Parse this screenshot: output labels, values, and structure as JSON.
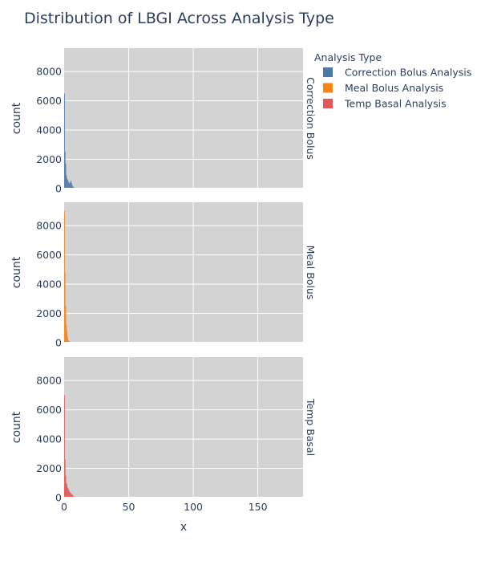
{
  "chart_data": {
    "type": "bar",
    "title": "Distribution of LBGI Across Analysis Type",
    "xlabel": "x",
    "ylabel": "count",
    "xlim": [
      0,
      185
    ],
    "ylim": [
      0,
      9600
    ],
    "x_ticks": [
      0,
      50,
      100,
      150
    ],
    "y_ticks": [
      0,
      2000,
      4000,
      6000,
      8000
    ],
    "grid": true,
    "plot_background": "#d3d3d3",
    "legend": {
      "title": "Analysis Type",
      "placement": "top-right"
    },
    "series": [
      {
        "name": "Correction Bolus Analysis",
        "facet_label": "Correction Bolus",
        "color": "#4c78a8",
        "bin_width": 0.5,
        "x": [
          0,
          0.5,
          1,
          1.5,
          2,
          2.5,
          3,
          3.5,
          4,
          4.5,
          5,
          5.5,
          6,
          6.5,
          7,
          7.5,
          8,
          8.5,
          9,
          9.5,
          10,
          10.5,
          11,
          11.5,
          12
        ],
        "values": [
          6500,
          2500,
          1700,
          900,
          700,
          600,
          500,
          400,
          350,
          450,
          550,
          400,
          250,
          150,
          100,
          80,
          60,
          40,
          30,
          20,
          15,
          10,
          8,
          5,
          3
        ]
      },
      {
        "name": "Meal Bolus Analysis",
        "facet_label": "Meal Bolus",
        "color": "#f58518",
        "bin_width": 0.5,
        "x": [
          0,
          0.5,
          1,
          1.5,
          2,
          2.5,
          3,
          3.5,
          4,
          4.5,
          5,
          5.5,
          6,
          6.5,
          7,
          7.5,
          8
        ],
        "values": [
          9000,
          4800,
          2500,
          1200,
          800,
          400,
          200,
          120,
          80,
          50,
          30,
          20,
          15,
          10,
          8,
          5,
          3
        ]
      },
      {
        "name": "Temp Basal Analysis",
        "facet_label": "Temp Basal",
        "color": "#e45756",
        "bin_width": 0.5,
        "x": [
          0,
          0.5,
          1,
          1.5,
          2,
          2.5,
          3,
          3.5,
          4,
          4.5,
          5,
          5.5,
          6,
          6.5,
          7,
          7.5,
          8,
          8.5,
          9,
          9.5,
          10,
          10.5,
          11
        ],
        "values": [
          7000,
          2600,
          1500,
          1000,
          900,
          700,
          600,
          500,
          400,
          350,
          300,
          250,
          200,
          150,
          100,
          80,
          60,
          40,
          30,
          20,
          15,
          10,
          5
        ]
      }
    ]
  }
}
